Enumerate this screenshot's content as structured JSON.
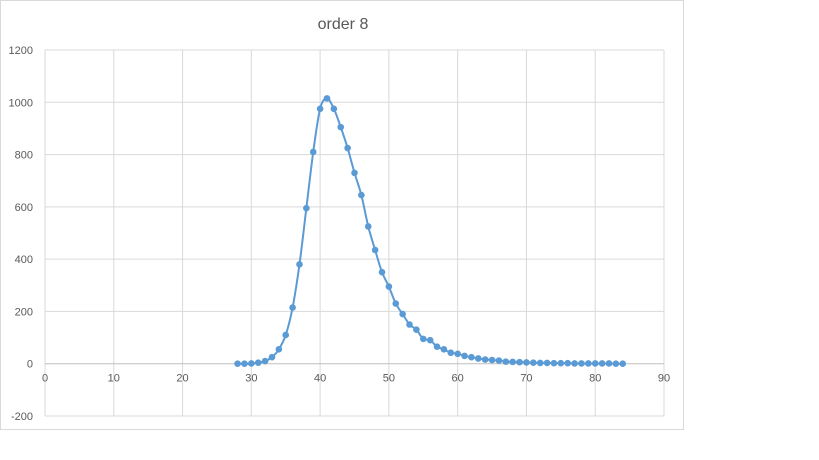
{
  "chart_data": {
    "type": "scatter",
    "title": "order 8",
    "xlabel": "",
    "ylabel": "",
    "xlim": [
      0,
      90
    ],
    "ylim": [
      -200,
      1200
    ],
    "x_ticks": [
      0,
      10,
      20,
      30,
      40,
      50,
      60,
      70,
      80,
      90
    ],
    "y_ticks": [
      -200,
      0,
      200,
      400,
      600,
      800,
      1000,
      1200
    ],
    "grid": true,
    "legend": "none",
    "smooth_line": true,
    "series_color": "#5b9bd5",
    "series": [
      {
        "x": [
          28,
          29,
          30,
          31,
          32,
          33,
          34,
          35,
          36,
          37,
          38,
          39,
          40,
          41,
          42,
          43,
          44,
          45,
          46,
          47,
          48,
          49,
          50,
          51,
          52,
          53,
          54,
          55,
          56,
          57,
          58,
          59,
          60,
          61,
          62,
          63,
          64,
          65,
          66,
          67,
          68,
          69,
          70,
          71,
          72,
          73,
          74,
          75,
          76,
          77,
          78,
          79,
          80,
          81,
          82,
          83,
          84
        ],
        "y": [
          0,
          0,
          1,
          4,
          10,
          25,
          55,
          110,
          215,
          380,
          595,
          810,
          975,
          1015,
          975,
          905,
          825,
          730,
          645,
          525,
          435,
          350,
          295,
          230,
          190,
          150,
          130,
          95,
          90,
          65,
          55,
          42,
          38,
          30,
          25,
          20,
          16,
          14,
          12,
          8,
          7,
          6,
          5,
          4,
          3,
          3,
          2,
          2,
          2,
          1,
          1,
          1,
          1,
          1,
          1,
          0,
          0
        ]
      }
    ]
  }
}
